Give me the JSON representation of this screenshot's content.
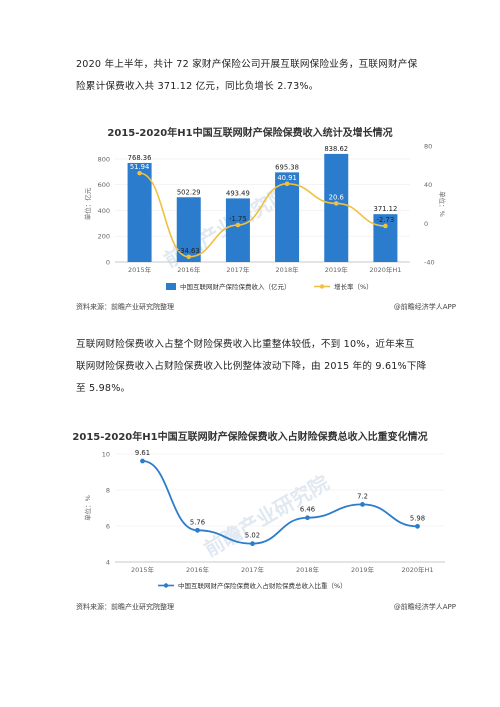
{
  "paragraphs": {
    "p1_line1": "2020 年上半年，共计 72 家财产保险公司开展互联网保险业务，互联网财产保",
    "p1_line2": "险累计保费收入共 371.12 亿元，同比负增长 2.73%。",
    "p2_line1": "互联网财险保费收入占整个财险保费收入比重整体较低，不到 10%，近年来互",
    "p2_line2": "联网财险保费收入占财险保费收入比例整体波动下降，由 2015 年的 9.61%下降",
    "p2_line3": "至 5.98%。"
  },
  "watermark": "前瞻产业研究院",
  "source": {
    "left": "资料来源：前瞻产业研究院整理",
    "right": "@前瞻经济学人APP"
  },
  "colors": {
    "bar": "#2b7ccc",
    "line": "#f0c040",
    "line2": "#2b7ccc"
  },
  "chart_data": [
    {
      "type": "bar",
      "title": "2015-2020年H1中国互联网财产保险保费收入统计及增长情况",
      "categories": [
        "2015年",
        "2016年",
        "2017年",
        "2018年",
        "2019年",
        "2020年H1"
      ],
      "series": [
        {
          "name": "中国互联网财产保险保费收入（亿元）",
          "type": "bar",
          "axis": "left",
          "values": [
            768.36,
            502.29,
            493.49,
            695.38,
            838.62,
            371.12
          ],
          "labels": [
            "768.36",
            "502.29",
            "493.49",
            "695.38",
            "838.62",
            "371.12"
          ]
        },
        {
          "name": "增长率（%）",
          "type": "line",
          "axis": "right",
          "values": [
            51.94,
            -34.63,
            -1.75,
            40.91,
            20.6,
            -2.73
          ],
          "labels": [
            "51.94",
            "-34.63",
            "-1.75",
            "40.91",
            "20.6",
            "-2.73"
          ]
        }
      ],
      "ylabel": "单位：亿元",
      "y2label": "单位：%",
      "ylim": [
        0,
        900
      ],
      "yticks": [
        "0",
        "200",
        "400",
        "600",
        "800"
      ],
      "y2lim": [
        -40,
        80
      ],
      "y2ticks": [
        "-40",
        "0",
        "40",
        "80"
      ],
      "legend": "bottom"
    },
    {
      "type": "line",
      "title": "2015-2020年H1中国互联网财产保险保费收入占财险保费总收入比重变化情况",
      "categories": [
        "2015年",
        "2016年",
        "2017年",
        "2018年",
        "2019年",
        "2020年H1"
      ],
      "series": [
        {
          "name": "中国互联网财产保险保费收入占财险保费总收入比重（%）",
          "values": [
            9.61,
            5.76,
            5.02,
            6.46,
            7.2,
            5.98
          ],
          "labels": [
            "9.61",
            "5.76",
            "5.02",
            "6.46",
            "7.2",
            "5.98"
          ]
        }
      ],
      "ylabel": "单位：%",
      "ylim": [
        4,
        10
      ],
      "yticks": [
        "4",
        "6",
        "8",
        "10"
      ],
      "legend": "bottom"
    }
  ]
}
